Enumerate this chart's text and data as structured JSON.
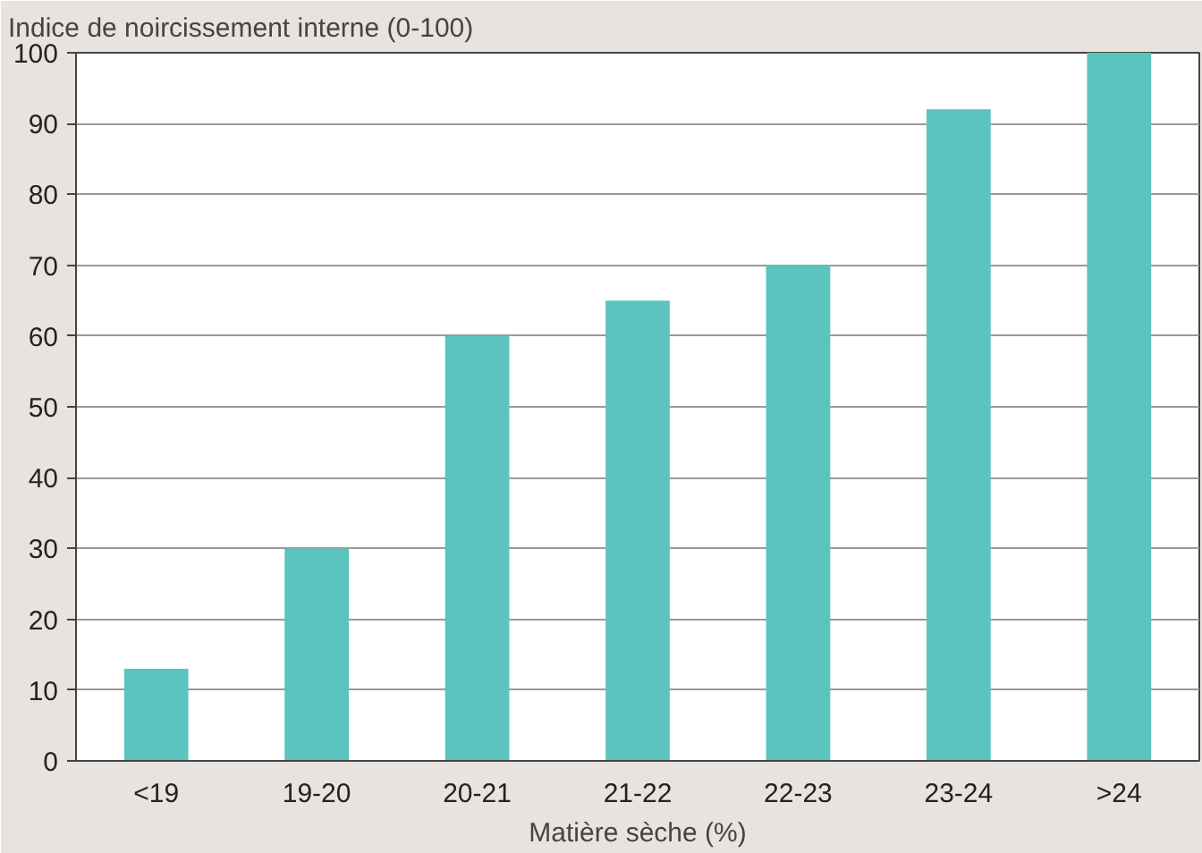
{
  "chart_data": {
    "type": "bar",
    "ylabel": "Indice de noircissement interne (0-100)",
    "xlabel": "Matière sèche (%)",
    "categories": [
      "<19",
      "19-20",
      "20-21",
      "21-22",
      "22-23",
      "23-24",
      ">24"
    ],
    "values": [
      13,
      30,
      60,
      65,
      70,
      92,
      100
    ],
    "color": "#5bc4bf",
    "ylim": [
      0,
      100
    ],
    "yticks": [
      0,
      10,
      20,
      30,
      40,
      50,
      60,
      70,
      80,
      90,
      100
    ],
    "grid": "y"
  }
}
